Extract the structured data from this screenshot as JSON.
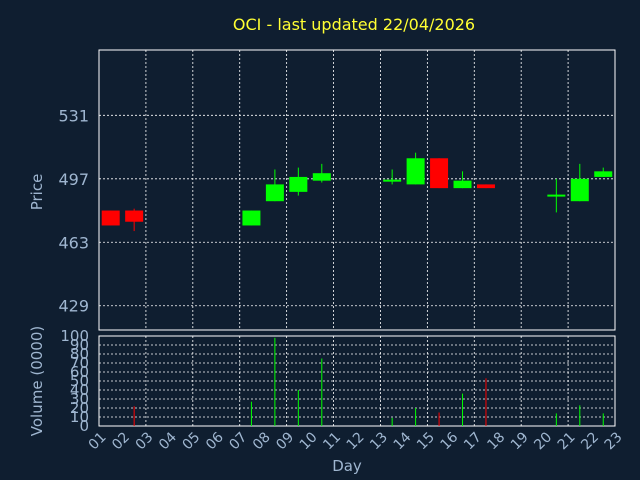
{
  "chart_data": [
    {
      "type": "candlestick",
      "title": "OCI - last updated 22/04/2026",
      "ylabel": "Price",
      "ylim": [
        416,
        566
      ],
      "yticks": [
        "429",
        "463",
        "497",
        "531"
      ],
      "x_categories": [
        "01",
        "02",
        "03",
        "04",
        "05",
        "06",
        "07",
        "08",
        "09",
        "10",
        "11",
        "12",
        "13",
        "14",
        "15",
        "16",
        "17",
        "18",
        "19",
        "20",
        "21",
        "22",
        "23"
      ],
      "grid": true,
      "candles": [
        {
          "day": "01",
          "open": 480,
          "close": 472,
          "high": 480,
          "low": 472
        },
        {
          "day": "02",
          "open": 480,
          "close": 474,
          "high": 481,
          "low": 469
        },
        {
          "day": "07",
          "open": 472,
          "close": 480,
          "high": 480,
          "low": 472
        },
        {
          "day": "08",
          "open": 485,
          "close": 494,
          "high": 502,
          "low": 485
        },
        {
          "day": "09",
          "open": 490,
          "close": 498,
          "high": 503,
          "low": 488
        },
        {
          "day": "10",
          "open": 496,
          "close": 500,
          "high": 505,
          "low": 495
        },
        {
          "day": "13",
          "open": 495,
          "close": 496,
          "high": 502,
          "low": 494
        },
        {
          "day": "14",
          "open": 494,
          "close": 508,
          "high": 511,
          "low": 494
        },
        {
          "day": "15",
          "open": 508,
          "close": 492,
          "high": 508,
          "low": 492
        },
        {
          "day": "16",
          "open": 492,
          "close": 496,
          "high": 501,
          "low": 492
        },
        {
          "day": "17",
          "open": 494,
          "close": 492,
          "high": 494,
          "low": 492
        },
        {
          "day": "20",
          "open": 487,
          "close": 488,
          "high": 497,
          "low": 479
        },
        {
          "day": "21",
          "open": 485,
          "close": 497,
          "high": 505,
          "low": 485
        },
        {
          "day": "22",
          "open": 498,
          "close": 501,
          "high": 503,
          "low": 498
        }
      ]
    },
    {
      "type": "bar",
      "ylabel": "Volume (0000)",
      "xlabel": "Day",
      "ylim": [
        0,
        100
      ],
      "yticks": [
        "0",
        "10",
        "20",
        "30",
        "40",
        "50",
        "60",
        "70",
        "80",
        "90",
        "100"
      ],
      "categories": [
        "02",
        "07",
        "08",
        "09",
        "10",
        "13",
        "14",
        "15",
        "16",
        "17",
        "20",
        "21",
        "22"
      ],
      "values": [
        22,
        27,
        98,
        40,
        75,
        9,
        20,
        15,
        36,
        53,
        14,
        23,
        14
      ],
      "colors": [
        "#ff0000",
        "#00ff00",
        "#00ff00",
        "#00ff00",
        "#00ff00",
        "#00ff00",
        "#00ff00",
        "#ff0000",
        "#00ff00",
        "#ff0000",
        "#00ff00",
        "#00ff00",
        "#00ff00"
      ]
    }
  ],
  "colors": {
    "background": "#0f1e30",
    "up": "#00ff00",
    "down": "#ff0000",
    "title": "#ffff33",
    "axis_text": "#9fb6d0"
  }
}
